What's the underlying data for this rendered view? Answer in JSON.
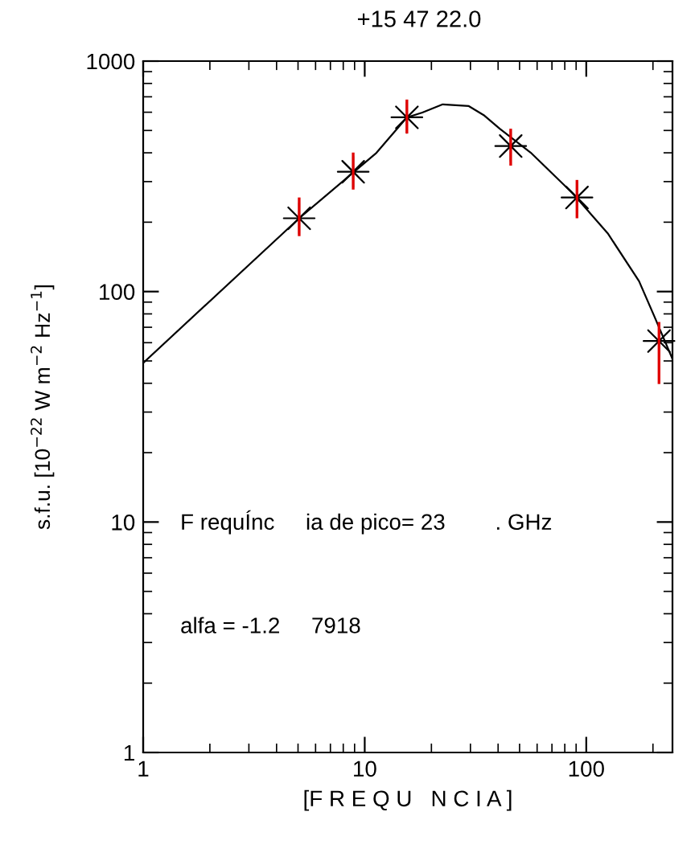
{
  "chart_data": {
    "type": "scatter",
    "title": "+15 47 22.0",
    "xlabel": "[F R E Q U   N C I A ]",
    "ylabel": "s.f.u. [10$^{−22}$ W m$^{−2}$ Hz$^{−1}$]",
    "annotations": [
      "F requÍnc     ia de pico= 23        . GHz",
      "alfa = -1.2     7918"
    ],
    "log": "xy",
    "xlim": [
      1,
      245
    ],
    "ylim": [
      1,
      1000
    ],
    "xticks": [
      1,
      10,
      100
    ],
    "yticks": [
      1,
      10,
      100,
      1000
    ],
    "grid": false,
    "legend": false,
    "series": [
      {
        "type": "line",
        "color": "#000000",
        "x": [
          1,
          5.06,
          11.3,
          15.5,
          18.2,
          22.5,
          29.5,
          34.7,
          40.7,
          56.1,
          86.5,
          125,
          173,
          203,
          245
        ],
        "values": [
          49,
          208,
          400,
          570,
          598,
          649,
          638,
          580,
          509,
          401,
          268,
          179,
          111,
          78,
          51
        ]
      },
      {
        "color": "#000000",
        "marker": "star",
        "x": [
          5.06,
          8.87,
          15.5,
          45.6,
          90.8,
          213
        ],
        "values": [
          208,
          331,
          570,
          428,
          256,
          61
        ],
        "errors": [
          [
            174,
            256
          ],
          [
            277,
            401
          ],
          [
            485,
            681
          ],
          [
            352,
            509
          ],
          [
            208,
            305
          ],
          [
            39.7,
            73.8
          ]
        ]
      }
    ]
  }
}
